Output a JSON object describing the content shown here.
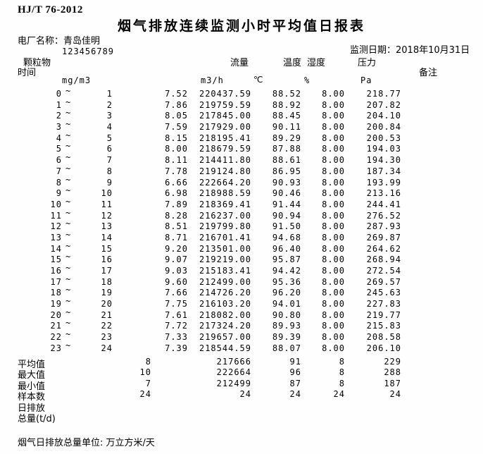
{
  "colors": {
    "background": "#fefefe",
    "text": "#000000"
  },
  "header": {
    "standard": "HJ/T 76-2012",
    "title": "烟气排放连续监测小时平均值日报表",
    "plant_label": "电厂名称：",
    "plant_name": "青岛佳明",
    "tick_mark": "`",
    "plant_code": "123456789",
    "date_label": "监测日期：",
    "date_value": "2018年10月31日"
  },
  "columns": {
    "particulate": "颗粒物",
    "time": "时间",
    "flow": "流量",
    "temperature": "温度",
    "humidity": "湿度",
    "pressure": "压力",
    "remark": "备注",
    "units": {
      "particulate": "mg/m3",
      "flow": "m3/h",
      "temperature": "℃",
      "humidity": "%",
      "pressure": "Pa"
    }
  },
  "table": {
    "tilde": "~",
    "rows": [
      {
        "h1": "0",
        "h2": "1",
        "pm": "7.52",
        "flow": "220437.59",
        "temp": "88.52",
        "hum": "8.00",
        "press": "218.77"
      },
      {
        "h1": "1",
        "h2": "2",
        "pm": "7.86",
        "flow": "219759.59",
        "temp": "88.92",
        "hum": "8.00",
        "press": "207.82"
      },
      {
        "h1": "2",
        "h2": "3",
        "pm": "8.05",
        "flow": "217845.00",
        "temp": "88.45",
        "hum": "8.00",
        "press": "204.10"
      },
      {
        "h1": "3",
        "h2": "4",
        "pm": "7.59",
        "flow": "217929.00",
        "temp": "90.11",
        "hum": "8.00",
        "press": "200.84"
      },
      {
        "h1": "4",
        "h2": "5",
        "pm": "8.15",
        "flow": "218195.41",
        "temp": "89.29",
        "hum": "8.00",
        "press": "200.53"
      },
      {
        "h1": "5",
        "h2": "6",
        "pm": "8.00",
        "flow": "218679.59",
        "temp": "87.88",
        "hum": "8.00",
        "press": "194.03"
      },
      {
        "h1": "6",
        "h2": "7",
        "pm": "8.11",
        "flow": "214411.80",
        "temp": "88.61",
        "hum": "8.00",
        "press": "194.30"
      },
      {
        "h1": "7",
        "h2": "8",
        "pm": "7.78",
        "flow": "219124.80",
        "temp": "86.95",
        "hum": "8.00",
        "press": "187.34"
      },
      {
        "h1": "8",
        "h2": "9",
        "pm": "6.66",
        "flow": "222664.20",
        "temp": "90.93",
        "hum": "8.00",
        "press": "193.99"
      },
      {
        "h1": "9",
        "h2": "10",
        "pm": "6.98",
        "flow": "218988.59",
        "temp": "90.46",
        "hum": "8.00",
        "press": "213.16"
      },
      {
        "h1": "10",
        "h2": "11",
        "pm": "7.89",
        "flow": "218369.41",
        "temp": "91.44",
        "hum": "8.00",
        "press": "244.41"
      },
      {
        "h1": "11",
        "h2": "12",
        "pm": "8.28",
        "flow": "216237.00",
        "temp": "90.94",
        "hum": "8.00",
        "press": "276.52"
      },
      {
        "h1": "12",
        "h2": "13",
        "pm": "8.51",
        "flow": "219799.80",
        "temp": "91.50",
        "hum": "8.00",
        "press": "287.93"
      },
      {
        "h1": "13",
        "h2": "14",
        "pm": "8.71",
        "flow": "216701.41",
        "temp": "94.68",
        "hum": "8.00",
        "press": "269.87"
      },
      {
        "h1": "14",
        "h2": "15",
        "pm": "9.20",
        "flow": "213501.00",
        "temp": "96.40",
        "hum": "8.00",
        "press": "264.62"
      },
      {
        "h1": "15",
        "h2": "16",
        "pm": "9.07",
        "flow": "219219.00",
        "temp": "95.87",
        "hum": "8.00",
        "press": "268.94"
      },
      {
        "h1": "16",
        "h2": "17",
        "pm": "9.03",
        "flow": "215183.41",
        "temp": "94.42",
        "hum": "8.00",
        "press": "272.54"
      },
      {
        "h1": "17",
        "h2": "18",
        "pm": "9.60",
        "flow": "212499.00",
        "temp": "95.36",
        "hum": "8.00",
        "press": "269.57"
      },
      {
        "h1": "18",
        "h2": "19",
        "pm": "7.66",
        "flow": "214726.20",
        "temp": "96.20",
        "hum": "8.00",
        "press": "245.63"
      },
      {
        "h1": "19",
        "h2": "20",
        "pm": "7.75",
        "flow": "216103.20",
        "temp": "94.01",
        "hum": "8.00",
        "press": "227.83"
      },
      {
        "h1": "20",
        "h2": "21",
        "pm": "7.61",
        "flow": "218082.00",
        "temp": "90.80",
        "hum": "8.00",
        "press": "219.77"
      },
      {
        "h1": "21",
        "h2": "22",
        "pm": "7.72",
        "flow": "217324.20",
        "temp": "89.93",
        "hum": "8.00",
        "press": "215.83"
      },
      {
        "h1": "22",
        "h2": "23",
        "pm": "7.33",
        "flow": "219657.00",
        "temp": "89.39",
        "hum": "8.00",
        "press": "208.58"
      },
      {
        "h1": "23",
        "h2": "24",
        "pm": "7.39",
        "flow": "218544.59",
        "temp": "88.07",
        "hum": "8.00",
        "press": "206.10"
      }
    ]
  },
  "summary": {
    "rows": [
      {
        "label": "平均值",
        "v1": "8",
        "flow": "217666",
        "temp": "91",
        "hum": "8",
        "press": "229"
      },
      {
        "label": "最大值",
        "v1": "10",
        "flow": "222664",
        "temp": "96",
        "hum": "8",
        "press": "288"
      },
      {
        "label": "最小值",
        "v1": "7",
        "flow": "212499",
        "temp": "87",
        "hum": "8",
        "press": "187"
      },
      {
        "label": "样本数",
        "v1": "24",
        "flow": "24",
        "temp": "24",
        "hum": "24",
        "press": "24"
      },
      {
        "label": "日排放",
        "v1": "",
        "flow": "",
        "temp": "",
        "hum": "",
        "press": ""
      },
      {
        "label": "总量(t/d)",
        "v1": "",
        "flow": "",
        "temp": "",
        "hum": "",
        "press": ""
      }
    ]
  },
  "footer": {
    "note": "烟气日排放总量单位: 万立方米/天"
  }
}
